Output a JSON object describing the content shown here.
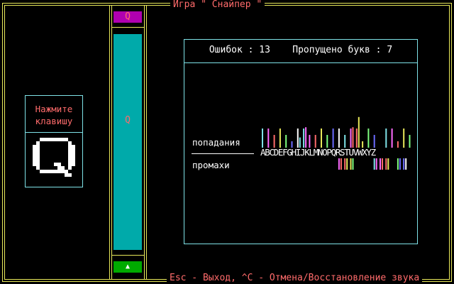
{
  "window": {
    "title": "Игра \" Снайпер \"",
    "footer": "Esc - Выход, ^C - Отмена/Восстановление звука"
  },
  "hint": {
    "prompt_line1": "Нажмите",
    "prompt_line2": "клавишу",
    "big_letter": "Q"
  },
  "game": {
    "target_letter": "Q",
    "falling_letter": "Q",
    "gun_symbol": "▲"
  },
  "stats": {
    "errors_label": "Ошибок",
    "errors_value": "13",
    "skipped_label": "Пропущено букв",
    "skipped_value": "7",
    "hits_label": "попадания",
    "misses_label": "промахи",
    "alphabet": "ABCDEFGHIJKLMNOPQRSTUVWXYZ"
  },
  "chart_data": {
    "type": "bar",
    "categories": [
      "A",
      "B",
      "C",
      "D",
      "E",
      "F",
      "G",
      "H",
      "I",
      "J",
      "K",
      "L",
      "M",
      "N",
      "O",
      "P",
      "Q",
      "R",
      "S",
      "T",
      "U",
      "V",
      "W",
      "X",
      "Y",
      "Z"
    ],
    "series": [
      {
        "name": "попадания",
        "values": [
          3,
          3,
          2,
          3,
          2,
          1,
          4,
          5,
          2,
          2,
          3,
          2,
          3,
          3,
          2,
          5,
          6,
          1,
          3,
          2,
          0,
          3,
          3,
          1,
          3,
          2
        ]
      },
      {
        "name": "промахи",
        "values": [
          0,
          0,
          0,
          0,
          0,
          0,
          0,
          0,
          0,
          0,
          0,
          0,
          0,
          1,
          1,
          1,
          0,
          0,
          0,
          1,
          1,
          1,
          0,
          1,
          1,
          0
        ]
      }
    ],
    "colors": [
      "#7fe3e8",
      "#ff6bff",
      "#ff6b6b",
      "#e8e85a",
      "#7fff7f",
      "#6b6bff",
      "#ffffff"
    ]
  }
}
